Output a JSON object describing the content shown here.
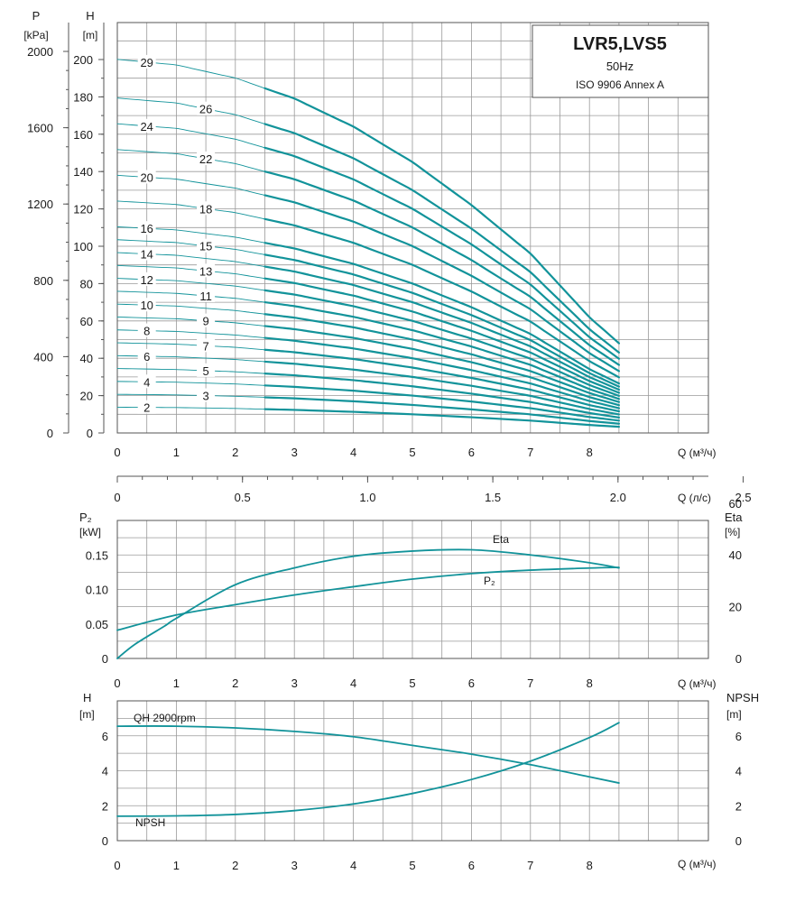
{
  "title_box": {
    "model": "LVR5,LVS5",
    "frequency": "50Hz",
    "standard": "ISO 9906 Annex A"
  },
  "colors": {
    "curve": "#12939a",
    "grid": "#9a9a9a",
    "frame": "#555555"
  },
  "chart_data": [
    {
      "type": "line",
      "panel": "head-curves",
      "x_label": "Q (м³/ч)",
      "xlim": [
        0,
        8.5
      ],
      "x_ticks": [
        0,
        1,
        2,
        3,
        4,
        5,
        6,
        7,
        8
      ],
      "left_axis": {
        "symbol": "P",
        "unit": "[kPa]",
        "ticks": [
          0,
          400,
          800,
          1200,
          1600,
          2000
        ]
      },
      "right_axis": {
        "symbol": "H",
        "unit": "[m]",
        "ylim": [
          0,
          200
        ],
        "ticks": [
          0,
          20,
          40,
          60,
          80,
          100,
          120,
          140,
          160,
          180,
          200
        ]
      },
      "secondary_x_axis": {
        "label": "Q (л/с)",
        "ticks": [
          0,
          0.5,
          1.0,
          1.5,
          2.0,
          2.5
        ]
      },
      "stage_curves": [
        {
          "stages": "2",
          "h0": 13.8,
          "h_end": 3.3
        },
        {
          "stages": "3",
          "h0": 20.7,
          "h_end": 5.0
        },
        {
          "stages": "4",
          "h0": 27.6,
          "h_end": 6.7
        },
        {
          "stages": "5",
          "h0": 34.5,
          "h_end": 8.3
        },
        {
          "stages": "6",
          "h0": 41.4,
          "h_end": 10.0
        },
        {
          "stages": "7",
          "h0": 48.3,
          "h_end": 11.7
        },
        {
          "stages": "8",
          "h0": 55.2,
          "h_end": 13.3
        },
        {
          "stages": "9",
          "h0": 62.1,
          "h_end": 15.0
        },
        {
          "stages": "10",
          "h0": 69.0,
          "h_end": 16.7
        },
        {
          "stages": "11",
          "h0": 75.9,
          "h_end": 18.3
        },
        {
          "stages": "12",
          "h0": 82.8,
          "h_end": 20.0
        },
        {
          "stages": "13",
          "h0": 89.7,
          "h_end": 21.7
        },
        {
          "stages": "14",
          "h0": 96.6,
          "h_end": 23.3
        },
        {
          "stages": "15",
          "h0": 103.5,
          "h_end": 25.0
        },
        {
          "stages": "16",
          "h0": 110.4,
          "h_end": 26.7
        },
        {
          "stages": "18",
          "h0": 124.2,
          "h_end": 30.0
        },
        {
          "stages": "20",
          "h0": 138.0,
          "h_end": 33.3
        },
        {
          "stages": "22",
          "h0": 151.8,
          "h_end": 36.7
        },
        {
          "stages": "24",
          "h0": 165.6,
          "h_end": 40.0
        },
        {
          "stages": "26",
          "h0": 179.4,
          "h_end": 43.3
        },
        {
          "stages": "29",
          "h0": 200.1,
          "h_end": 48.3
        }
      ],
      "curve_shape": {
        "x": [
          0,
          1,
          2,
          3,
          4,
          5,
          6,
          7,
          8,
          8.5
        ],
        "relative_head": [
          1.0,
          0.985,
          0.95,
          0.895,
          0.82,
          0.725,
          0.61,
          0.48,
          0.31,
          0.24
        ]
      },
      "visible_labels": [
        {
          "stages": "2",
          "x": 0.5
        },
        {
          "stages": "3",
          "x": 1.5
        },
        {
          "stages": "4",
          "x": 0.5
        },
        {
          "stages": "5",
          "x": 1.5
        },
        {
          "stages": "6",
          "x": 0.5
        },
        {
          "stages": "7",
          "x": 1.5
        },
        {
          "stages": "8",
          "x": 0.5
        },
        {
          "stages": "9",
          "x": 1.5
        },
        {
          "stages": "10",
          "x": 0.5
        },
        {
          "stages": "11",
          "x": 1.5
        },
        {
          "stages": "12",
          "x": 0.5
        },
        {
          "stages": "13",
          "x": 1.5
        },
        {
          "stages": "14",
          "x": 0.5
        },
        {
          "stages": "15",
          "x": 1.5
        },
        {
          "stages": "16",
          "x": 0.5
        },
        {
          "stages": "18",
          "x": 1.5
        },
        {
          "stages": "20",
          "x": 0.5
        },
        {
          "stages": "22",
          "x": 1.5
        },
        {
          "stages": "24",
          "x": 0.5
        },
        {
          "stages": "26",
          "x": 1.5
        },
        {
          "stages": "29",
          "x": 0.5
        }
      ]
    },
    {
      "type": "line",
      "panel": "power-efficiency",
      "x_label": "Q (м³/ч)",
      "xlim": [
        0,
        8.5
      ],
      "x_ticks": [
        0,
        1,
        2,
        3,
        4,
        5,
        6,
        7,
        8
      ],
      "left_axis": {
        "symbol": "P₂",
        "unit": "[kW]",
        "ylim": [
          0,
          0.2
        ],
        "ticks": [
          "0",
          "0.05",
          "0.10",
          "0.15"
        ]
      },
      "right_axis": {
        "symbol": "Eta",
        "unit": "[%]",
        "ylim": [
          0,
          53.33
        ],
        "ticks": [
          "0",
          "20",
          "40",
          "60"
        ]
      },
      "series": [
        {
          "name": "Eta",
          "axis": "right",
          "x": [
            0,
            0.3,
            0.8,
            1,
            2,
            3,
            4,
            5,
            6,
            7,
            8,
            8.5
          ],
          "y": [
            0,
            5.5,
            12.5,
            15.5,
            28.5,
            35.0,
            39.5,
            41.5,
            42.0,
            40.0,
            37.0,
            35.0
          ]
        },
        {
          "name": "P₂",
          "axis": "left",
          "x": [
            0,
            1,
            2,
            3,
            4,
            5,
            6,
            7,
            8,
            8.5
          ],
          "y": [
            0.041,
            0.063,
            0.078,
            0.092,
            0.104,
            0.115,
            0.123,
            0.128,
            0.131,
            0.132
          ]
        }
      ]
    },
    {
      "type": "line",
      "panel": "npsh",
      "x_label": "Q (м³/ч)",
      "xlim": [
        0,
        8.5
      ],
      "x_ticks": [
        0,
        1,
        2,
        3,
        4,
        5,
        6,
        7,
        8
      ],
      "left_axis": {
        "symbol": "H",
        "unit": "[m]",
        "ylim": [
          0,
          8
        ],
        "ticks": [
          "0",
          "2",
          "4",
          "6"
        ]
      },
      "right_axis": {
        "symbol": "NPSH",
        "unit": "[m]",
        "ylim": [
          0,
          8
        ],
        "ticks": [
          "0",
          "2",
          "4",
          "6"
        ]
      },
      "series": [
        {
          "name": "QH 2900rpm",
          "x": [
            0,
            1,
            2,
            3,
            4,
            5,
            6,
            7,
            8,
            8.5
          ],
          "y": [
            6.55,
            6.55,
            6.45,
            6.25,
            5.95,
            5.45,
            4.95,
            4.35,
            3.65,
            3.3
          ]
        },
        {
          "name": "NPSH",
          "x": [
            0,
            1,
            2,
            3,
            4,
            5,
            6,
            7,
            8,
            8.5
          ],
          "y": [
            1.4,
            1.42,
            1.5,
            1.72,
            2.1,
            2.7,
            3.5,
            4.55,
            5.9,
            6.75
          ]
        }
      ]
    }
  ]
}
